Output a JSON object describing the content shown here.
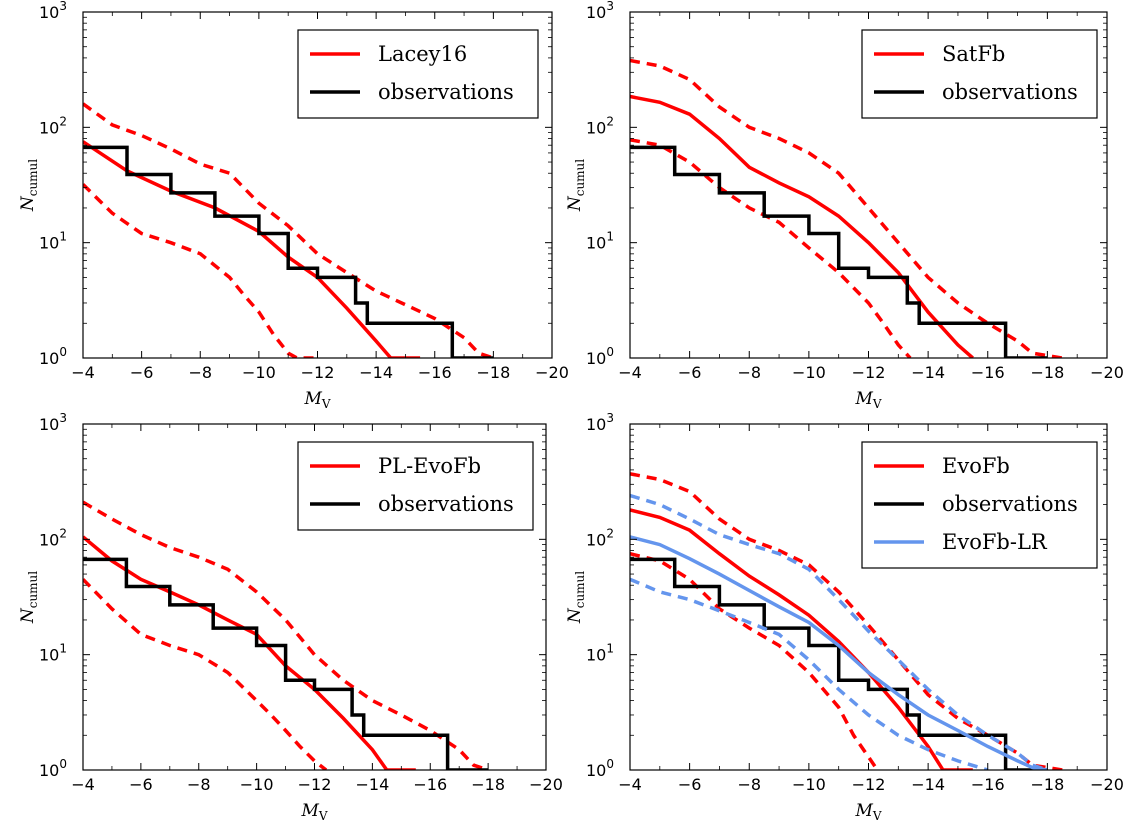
{
  "chart_data": [
    {
      "type": "line",
      "xlabel": "M",
      "xlabel_sub": "V",
      "ylabel": "N",
      "ylabel_sub": "cumul",
      "xlim": [
        -4,
        -20
      ],
      "ylim": [
        1,
        1000
      ],
      "yscale": "log",
      "xticks": [
        -4,
        -6,
        -8,
        -10,
        -12,
        -14,
        -16,
        -18,
        -20
      ],
      "yticks": [
        {
          "base": "10",
          "exp": "0"
        },
        {
          "base": "10",
          "exp": "1"
        },
        {
          "base": "10",
          "exp": "2"
        },
        {
          "base": "10",
          "exp": "3"
        }
      ],
      "legend_position": "top-right",
      "series": [
        {
          "name": "Lacey16",
          "color": "#ff0000",
          "style": "solid",
          "legend": true,
          "x": [
            -4,
            -5.5,
            -7,
            -8.5,
            -10,
            -11,
            -12,
            -13,
            -14,
            -14.5,
            -15.5
          ],
          "y": [
            75,
            42,
            28,
            20,
            12.5,
            7.5,
            5,
            2.7,
            1.4,
            1,
            1
          ]
        },
        {
          "name": "",
          "color": "#ff0000",
          "style": "dashed",
          "legend": false,
          "x": [
            -4,
            -5,
            -6,
            -7,
            -8,
            -9,
            -10,
            -11,
            -12,
            -13,
            -14,
            -15,
            -16,
            -17,
            -17.5,
            -18
          ],
          "y": [
            160,
            105,
            85,
            65,
            48,
            40,
            22,
            14,
            8,
            5.5,
            3.8,
            2.9,
            2.2,
            1.5,
            1.1,
            1
          ]
        },
        {
          "name": "",
          "color": "#ff0000",
          "style": "dashed",
          "legend": false,
          "x": [
            -4,
            -5,
            -6,
            -7,
            -8,
            -9,
            -9.5,
            -10,
            -10.5,
            -11,
            -11.3,
            -12
          ],
          "y": [
            32,
            18,
            12,
            10,
            8,
            5,
            3.5,
            2.5,
            1.6,
            1.1,
            1,
            1
          ]
        },
        {
          "name": "observations",
          "color": "#000000",
          "style": "step",
          "legend": true,
          "x": [
            -4,
            -5.5,
            -5.5,
            -7,
            -7,
            -8.5,
            -8.5,
            -10,
            -10,
            -11,
            -11,
            -12,
            -12,
            -13.3,
            -13.3,
            -13.7,
            -13.7,
            -16.6,
            -16.6,
            -18
          ],
          "y": [
            67,
            67,
            39,
            39,
            27,
            27,
            17,
            17,
            12,
            12,
            6,
            6,
            5,
            5,
            3,
            3,
            2,
            2,
            1,
            1
          ]
        }
      ]
    },
    {
      "type": "line",
      "xlabel": "M",
      "xlabel_sub": "V",
      "ylabel": "N",
      "ylabel_sub": "cumul",
      "xlim": [
        -4,
        -20
      ],
      "ylim": [
        1,
        1000
      ],
      "yscale": "log",
      "xticks": [
        -4,
        -6,
        -8,
        -10,
        -12,
        -14,
        -16,
        -18,
        -20
      ],
      "yticks": [
        {
          "base": "10",
          "exp": "0"
        },
        {
          "base": "10",
          "exp": "1"
        },
        {
          "base": "10",
          "exp": "2"
        },
        {
          "base": "10",
          "exp": "3"
        }
      ],
      "legend_position": "top-right",
      "series": [
        {
          "name": "SatFb",
          "color": "#ff0000",
          "style": "solid",
          "legend": true,
          "x": [
            -4,
            -5,
            -6,
            -7,
            -8,
            -9,
            -10,
            -11,
            -12,
            -13,
            -14,
            -15,
            -15.5
          ],
          "y": [
            185,
            165,
            130,
            80,
            45,
            33,
            25,
            17,
            10,
            5.5,
            2.5,
            1.3,
            1
          ]
        },
        {
          "name": "",
          "color": "#ff0000",
          "style": "dashed",
          "legend": false,
          "x": [
            -4,
            -5,
            -6,
            -7,
            -8,
            -9,
            -10,
            -11,
            -12,
            -13,
            -14,
            -15,
            -16,
            -17,
            -17.5,
            -18.5
          ],
          "y": [
            380,
            340,
            260,
            150,
            100,
            80,
            60,
            40,
            20,
            10,
            5,
            3,
            2,
            1.4,
            1.1,
            1
          ]
        },
        {
          "name": "",
          "color": "#ff0000",
          "style": "dashed",
          "legend": false,
          "x": [
            -4,
            -5,
            -6,
            -7,
            -8,
            -9,
            -10,
            -11,
            -12,
            -12.5,
            -13,
            -13.4
          ],
          "y": [
            78,
            70,
            50,
            30,
            20,
            15,
            9,
            5.5,
            3,
            2,
            1.3,
            1
          ]
        },
        {
          "name": "observations",
          "color": "#000000",
          "style": "step",
          "legend": true,
          "x": [
            -4,
            -5.5,
            -5.5,
            -7,
            -7,
            -8.5,
            -8.5,
            -10,
            -10,
            -11,
            -11,
            -12,
            -12,
            -13.3,
            -13.3,
            -13.7,
            -13.7,
            -16.6,
            -16.6,
            -18
          ],
          "y": [
            67,
            67,
            39,
            39,
            27,
            27,
            17,
            17,
            12,
            12,
            6,
            6,
            5,
            5,
            3,
            3,
            2,
            2,
            1,
            1
          ]
        }
      ]
    },
    {
      "type": "line",
      "xlabel": "M",
      "xlabel_sub": "V",
      "ylabel": "N",
      "ylabel_sub": "cumul",
      "xlim": [
        -4,
        -20
      ],
      "ylim": [
        1,
        1000
      ],
      "yscale": "log",
      "xticks": [
        -4,
        -6,
        -8,
        -10,
        -12,
        -14,
        -16,
        -18,
        -20
      ],
      "yticks": [
        {
          "base": "10",
          "exp": "0"
        },
        {
          "base": "10",
          "exp": "1"
        },
        {
          "base": "10",
          "exp": "2"
        },
        {
          "base": "10",
          "exp": "3"
        }
      ],
      "legend_position": "top-right",
      "series": [
        {
          "name": "PL-EvoFb",
          "color": "#ff0000",
          "style": "solid",
          "legend": true,
          "x": [
            -4,
            -5,
            -6,
            -7,
            -8,
            -9,
            -10,
            -11,
            -12,
            -13,
            -14,
            -14.5,
            -15.5
          ],
          "y": [
            105,
            65,
            45,
            35,
            27,
            20,
            15,
            8,
            5,
            2.8,
            1.5,
            1,
            1
          ]
        },
        {
          "name": "",
          "color": "#ff0000",
          "style": "dashed",
          "legend": false,
          "x": [
            -4,
            -5,
            -6,
            -7,
            -8,
            -9,
            -10,
            -11,
            -12,
            -13,
            -14,
            -15,
            -16,
            -17,
            -17.5,
            -18
          ],
          "y": [
            210,
            150,
            110,
            85,
            70,
            55,
            35,
            20,
            10,
            6,
            4,
            3,
            2.2,
            1.5,
            1.1,
            1
          ]
        },
        {
          "name": "",
          "color": "#ff0000",
          "style": "dashed",
          "legend": false,
          "x": [
            -4,
            -5,
            -6,
            -7,
            -8,
            -9,
            -10,
            -10.5,
            -11,
            -11.5,
            -12,
            -12.4
          ],
          "y": [
            45,
            25,
            15,
            12,
            10,
            7,
            4,
            3,
            2.2,
            1.6,
            1.2,
            1
          ]
        },
        {
          "name": "observations",
          "color": "#000000",
          "style": "step",
          "legend": true,
          "x": [
            -4,
            -5.5,
            -5.5,
            -7,
            -7,
            -8.5,
            -8.5,
            -10,
            -10,
            -11,
            -11,
            -12,
            -12,
            -13.3,
            -13.3,
            -13.7,
            -13.7,
            -16.6,
            -16.6,
            -18
          ],
          "y": [
            67,
            67,
            39,
            39,
            27,
            27,
            17,
            17,
            12,
            12,
            6,
            6,
            5,
            5,
            3,
            3,
            2,
            2,
            1,
            1
          ]
        }
      ]
    },
    {
      "type": "line",
      "xlabel": "M",
      "xlabel_sub": "V",
      "ylabel": "N",
      "ylabel_sub": "cumul",
      "xlim": [
        -4,
        -20
      ],
      "ylim": [
        1,
        1000
      ],
      "yscale": "log",
      "xticks": [
        -4,
        -6,
        -8,
        -10,
        -12,
        -14,
        -16,
        -18,
        -20
      ],
      "yticks": [
        {
          "base": "10",
          "exp": "0"
        },
        {
          "base": "10",
          "exp": "1"
        },
        {
          "base": "10",
          "exp": "2"
        },
        {
          "base": "10",
          "exp": "3"
        }
      ],
      "legend_position": "top-right",
      "series": [
        {
          "name": "EvoFb",
          "color": "#ff0000",
          "style": "solid",
          "legend": true,
          "x": [
            -4,
            -5,
            -6,
            -7,
            -8,
            -9,
            -10,
            -11,
            -12,
            -13,
            -14,
            -14.5,
            -15.5
          ],
          "y": [
            180,
            155,
            120,
            75,
            48,
            33,
            22,
            13,
            7,
            3.5,
            1.6,
            1,
            1
          ]
        },
        {
          "name": "",
          "color": "#ff0000",
          "style": "dashed",
          "legend": false,
          "x": [
            -4,
            -5,
            -6,
            -7,
            -8,
            -9,
            -10,
            -11,
            -12,
            -13,
            -14,
            -15,
            -16,
            -17,
            -17.5,
            -18.5
          ],
          "y": [
            370,
            330,
            260,
            150,
            100,
            80,
            60,
            35,
            18,
            9,
            4.5,
            2.8,
            2,
            1.4,
            1.1,
            1
          ]
        },
        {
          "name": "",
          "color": "#ff0000",
          "style": "dashed",
          "legend": false,
          "x": [
            -4,
            -5,
            -6,
            -7,
            -8,
            -9,
            -10,
            -11,
            -11.5,
            -12,
            -12.3
          ],
          "y": [
            75,
            65,
            45,
            25,
            17,
            12,
            7,
            3.5,
            2,
            1.3,
            1
          ]
        },
        {
          "name": "observations",
          "color": "#000000",
          "style": "step",
          "legend": true,
          "x": [
            -4,
            -5.5,
            -5.5,
            -7,
            -7,
            -8.5,
            -8.5,
            -10,
            -10,
            -11,
            -11,
            -12,
            -12,
            -13.3,
            -13.3,
            -13.7,
            -13.7,
            -16.6,
            -16.6,
            -18
          ],
          "y": [
            67,
            67,
            39,
            39,
            27,
            27,
            17,
            17,
            12,
            12,
            6,
            6,
            5,
            5,
            3,
            3,
            2,
            2,
            1,
            1
          ]
        },
        {
          "name": "EvoFb-LR",
          "color": "#6495ed",
          "style": "solid",
          "legend": true,
          "x": [
            -4,
            -5,
            -6,
            -7,
            -8,
            -9,
            -10,
            -11,
            -12,
            -13,
            -14,
            -15,
            -16,
            -17,
            -17.5,
            -18
          ],
          "y": [
            105,
            90,
            68,
            50,
            36,
            26,
            19,
            12,
            7,
            4.5,
            3,
            2.2,
            1.6,
            1.2,
            1.05,
            1
          ]
        },
        {
          "name": "",
          "color": "#6495ed",
          "style": "dashed",
          "legend": false,
          "x": [
            -4,
            -5,
            -6,
            -7,
            -8,
            -9,
            -10,
            -11,
            -12,
            -13,
            -14,
            -15,
            -16,
            -17,
            -17.5,
            -18
          ],
          "y": [
            240,
            200,
            150,
            110,
            90,
            75,
            55,
            30,
            16,
            9,
            5,
            3,
            2,
            1.4,
            1.1,
            1
          ]
        },
        {
          "name": "",
          "color": "#6495ed",
          "style": "dashed",
          "legend": false,
          "x": [
            -4,
            -5,
            -6,
            -7,
            -8,
            -9,
            -10,
            -11,
            -12,
            -13,
            -14,
            -15,
            -16
          ],
          "y": [
            45,
            35,
            30,
            24,
            19,
            15,
            9,
            5,
            3,
            2,
            1.5,
            1.2,
            1
          ]
        }
      ]
    }
  ]
}
